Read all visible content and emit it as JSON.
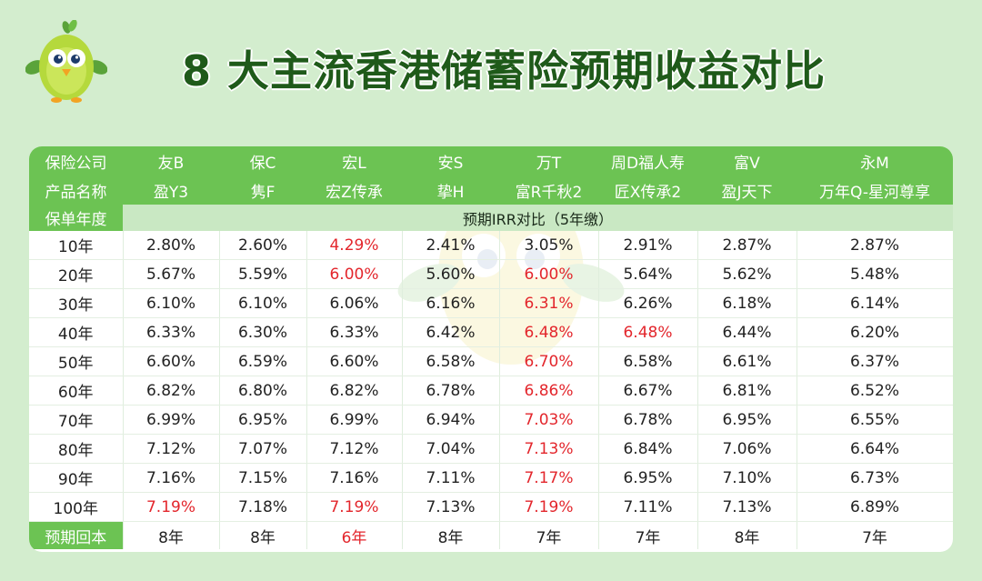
{
  "title": "8 大主流香港储蓄险预期收益对比",
  "colors": {
    "header_green": "#6cc353",
    "highlight_red": "#e3262c",
    "background": "#d3edce"
  },
  "mascot_icon": "green-bird-mascot",
  "table": {
    "row_labels": {
      "company": "保险公司",
      "product": "产品名称",
      "policy_year": "保单年度",
      "payback": "预期回本"
    },
    "irr_caption": "预期IRR对比（5年缴）",
    "companies": [
      "友B",
      "保C",
      "宏L",
      "安S",
      "万T",
      "周D福人寿",
      "富V",
      "永M"
    ],
    "products": [
      "盈Y3",
      "隽F",
      "宏Z传承",
      "挚H",
      "富R千秋2",
      "匠X传承2",
      "盈J天下",
      "万年Q-星河尊享"
    ],
    "years": [
      "10年",
      "20年",
      "30年",
      "40年",
      "50年",
      "60年",
      "70年",
      "80年",
      "90年",
      "100年"
    ],
    "rows": [
      [
        "2.80%",
        "2.60%",
        "4.29%",
        "2.41%",
        "3.05%",
        "2.91%",
        "2.87%",
        "2.87%"
      ],
      [
        "5.67%",
        "5.59%",
        "6.00%",
        "5.60%",
        "6.00%",
        "5.64%",
        "5.62%",
        "5.48%"
      ],
      [
        "6.10%",
        "6.10%",
        "6.06%",
        "6.16%",
        "6.31%",
        "6.26%",
        "6.18%",
        "6.14%"
      ],
      [
        "6.33%",
        "6.30%",
        "6.33%",
        "6.42%",
        "6.48%",
        "6.48%",
        "6.44%",
        "6.20%"
      ],
      [
        "6.60%",
        "6.59%",
        "6.60%",
        "6.58%",
        "6.70%",
        "6.58%",
        "6.61%",
        "6.37%"
      ],
      [
        "6.82%",
        "6.80%",
        "6.82%",
        "6.78%",
        "6.86%",
        "6.67%",
        "6.81%",
        "6.52%"
      ],
      [
        "6.99%",
        "6.95%",
        "6.99%",
        "6.94%",
        "7.03%",
        "6.78%",
        "6.95%",
        "6.55%"
      ],
      [
        "7.12%",
        "7.07%",
        "7.12%",
        "7.04%",
        "7.13%",
        "6.84%",
        "7.06%",
        "6.64%"
      ],
      [
        "7.16%",
        "7.15%",
        "7.16%",
        "7.11%",
        "7.17%",
        "6.95%",
        "7.10%",
        "6.73%"
      ],
      [
        "7.19%",
        "7.18%",
        "7.19%",
        "7.13%",
        "7.19%",
        "7.11%",
        "7.13%",
        "6.89%"
      ]
    ],
    "highlighted": [
      [
        0,
        2
      ],
      [
        1,
        2
      ],
      [
        1,
        4
      ],
      [
        2,
        4
      ],
      [
        3,
        4
      ],
      [
        3,
        5
      ],
      [
        4,
        4
      ],
      [
        5,
        4
      ],
      [
        6,
        4
      ],
      [
        7,
        4
      ],
      [
        8,
        4
      ],
      [
        9,
        0
      ],
      [
        9,
        2
      ],
      [
        9,
        4
      ]
    ],
    "payback": [
      "8年",
      "8年",
      "6年",
      "8年",
      "7年",
      "7年",
      "8年",
      "7年"
    ],
    "payback_highlighted": [
      2
    ]
  }
}
